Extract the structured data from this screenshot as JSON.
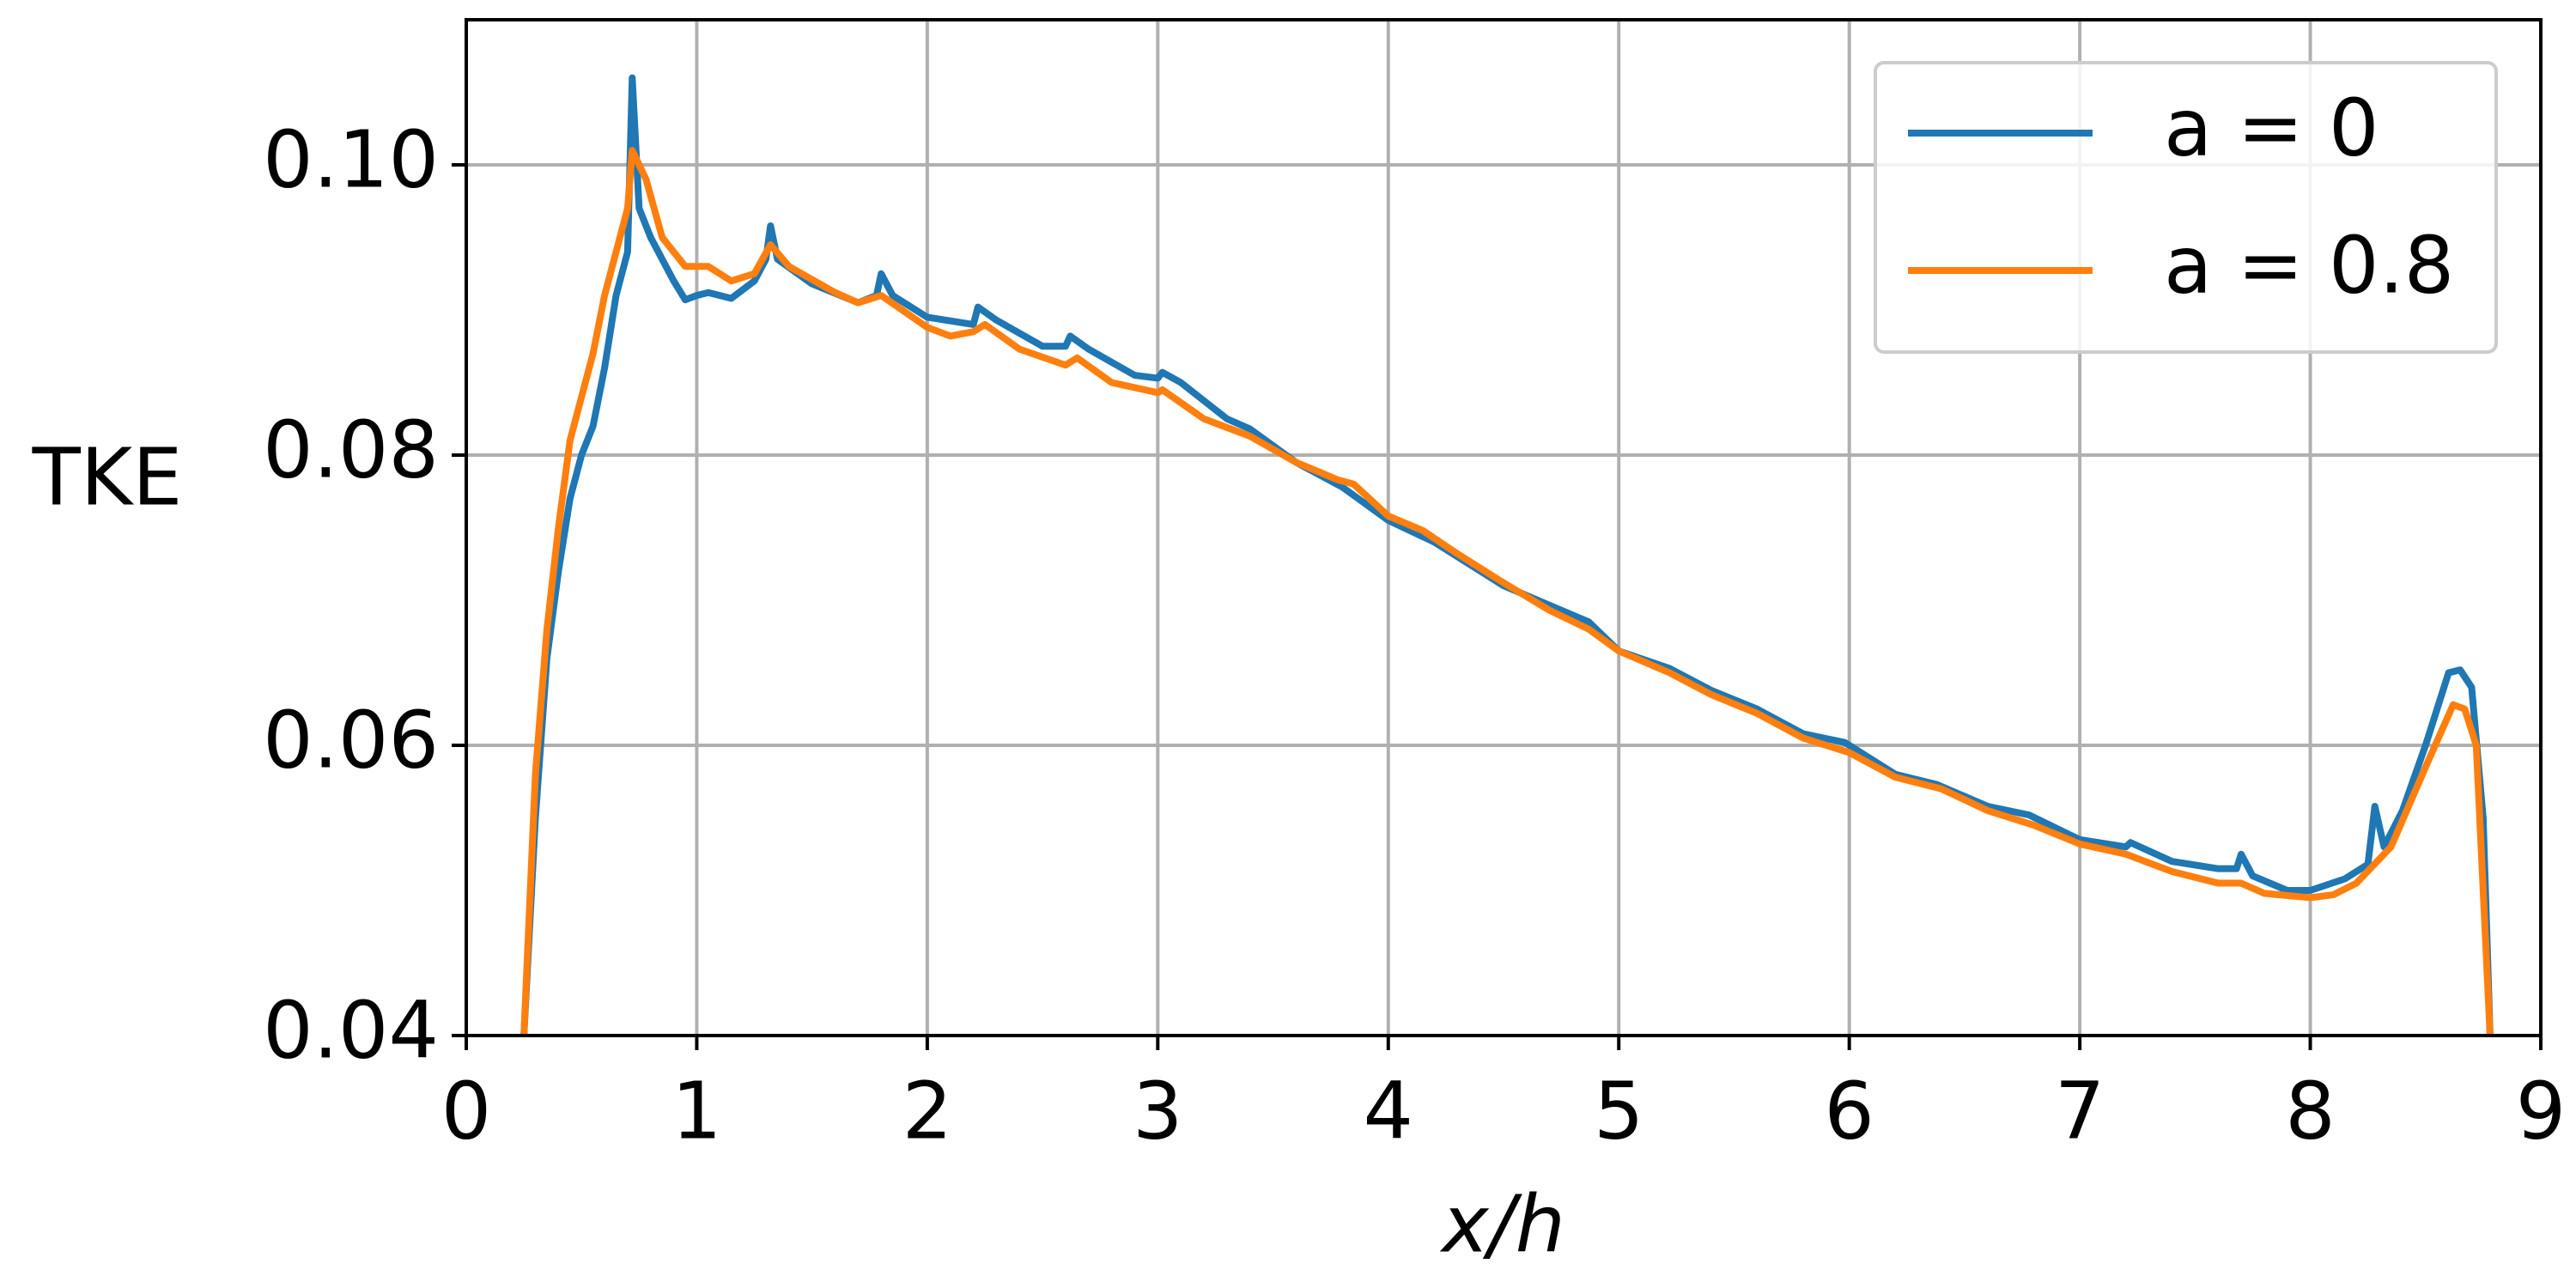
{
  "chart_data": {
    "type": "line",
    "xlabel": "x/h",
    "ylabel": "TKE",
    "xlim": [
      0,
      9
    ],
    "xticks": [
      0,
      1,
      2,
      3,
      4,
      5,
      6,
      7,
      8,
      9
    ],
    "ylim": [
      0.04,
      0.11
    ],
    "yticks": [
      0.04,
      0.06,
      0.08,
      {
        "value": 0.1,
        "label": "0.10"
      }
    ],
    "grid": true,
    "legend": "upper right",
    "series": [
      {
        "name": "a = 0",
        "color": "#1f77b4",
        "x": [
          0.25,
          0.3,
          0.35,
          0.4,
          0.45,
          0.5,
          0.55,
          0.6,
          0.65,
          0.7,
          0.72,
          0.75,
          0.8,
          0.9,
          0.95,
          1.0,
          1.05,
          1.15,
          1.25,
          1.3,
          1.32,
          1.35,
          1.5,
          1.7,
          1.78,
          1.8,
          1.85,
          2.0,
          2.2,
          2.22,
          2.3,
          2.5,
          2.6,
          2.62,
          2.7,
          2.9,
          3.0,
          3.02,
          3.1,
          3.3,
          3.4,
          3.6,
          3.8,
          4.0,
          4.2,
          4.5,
          4.87,
          5.0,
          5.22,
          5.4,
          5.6,
          5.8,
          5.98,
          6.2,
          6.38,
          6.6,
          6.78,
          7.0,
          7.2,
          7.22,
          7.4,
          7.6,
          7.68,
          7.7,
          7.75,
          7.9,
          8.0,
          8.15,
          8.25,
          8.28,
          8.32,
          8.4,
          8.5,
          8.6,
          8.65,
          8.7,
          8.75,
          8.78
        ],
        "values": [
          0.04,
          0.055,
          0.066,
          0.072,
          0.077,
          0.08,
          0.082,
          0.086,
          0.091,
          0.094,
          0.106,
          0.097,
          0.095,
          0.092,
          0.0907,
          0.091,
          0.0912,
          0.0908,
          0.092,
          0.0935,
          0.0958,
          0.0935,
          0.0918,
          0.0905,
          0.091,
          0.0925,
          0.091,
          0.0895,
          0.089,
          0.0902,
          0.0893,
          0.0875,
          0.0875,
          0.0882,
          0.0873,
          0.0855,
          0.0853,
          0.0857,
          0.085,
          0.0825,
          0.0818,
          0.0795,
          0.0778,
          0.0755,
          0.074,
          0.071,
          0.0685,
          0.0665,
          0.0653,
          0.0638,
          0.0625,
          0.0608,
          0.0602,
          0.058,
          0.0573,
          0.0558,
          0.0552,
          0.0535,
          0.053,
          0.0533,
          0.052,
          0.0515,
          0.0515,
          0.0525,
          0.051,
          0.05,
          0.05,
          0.0508,
          0.0518,
          0.0558,
          0.053,
          0.0555,
          0.06,
          0.065,
          0.0652,
          0.064,
          0.055,
          0.04
        ]
      },
      {
        "name": "a = 0.8",
        "color": "#ff7f0e",
        "x": [
          0.25,
          0.3,
          0.35,
          0.4,
          0.45,
          0.5,
          0.55,
          0.6,
          0.65,
          0.7,
          0.72,
          0.78,
          0.85,
          0.95,
          1.05,
          1.15,
          1.25,
          1.32,
          1.4,
          1.6,
          1.7,
          1.8,
          2.0,
          2.1,
          2.2,
          2.25,
          2.4,
          2.6,
          2.65,
          2.8,
          3.0,
          3.02,
          3.2,
          3.4,
          3.6,
          3.78,
          3.85,
          4.0,
          4.15,
          4.3,
          4.5,
          4.7,
          4.87,
          5.0,
          5.22,
          5.4,
          5.6,
          5.8,
          6.0,
          6.2,
          6.4,
          6.6,
          6.8,
          7.0,
          7.2,
          7.4,
          7.6,
          7.7,
          7.8,
          8.0,
          8.1,
          8.2,
          8.35,
          8.5,
          8.62,
          8.67,
          8.72,
          8.78
        ],
        "values": [
          0.04,
          0.058,
          0.068,
          0.075,
          0.081,
          0.084,
          0.087,
          0.091,
          0.094,
          0.097,
          0.101,
          0.099,
          0.095,
          0.093,
          0.093,
          0.092,
          0.0925,
          0.0945,
          0.093,
          0.0912,
          0.0905,
          0.091,
          0.0888,
          0.0882,
          0.0885,
          0.089,
          0.0873,
          0.0862,
          0.0867,
          0.085,
          0.0843,
          0.0845,
          0.0825,
          0.0813,
          0.0795,
          0.0783,
          0.078,
          0.0758,
          0.0748,
          0.0732,
          0.0712,
          0.0693,
          0.068,
          0.0665,
          0.065,
          0.0635,
          0.0622,
          0.0605,
          0.0595,
          0.0578,
          0.057,
          0.0555,
          0.0545,
          0.0532,
          0.0525,
          0.0513,
          0.0505,
          0.0505,
          0.0498,
          0.0495,
          0.0497,
          0.0505,
          0.053,
          0.0585,
          0.0628,
          0.0625,
          0.06,
          0.04
        ]
      }
    ]
  }
}
